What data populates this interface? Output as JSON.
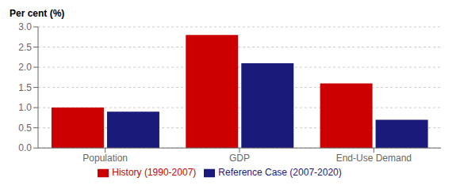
{
  "chart_data": {
    "type": "bar",
    "categories": [
      "Population",
      "GDP",
      "End-Use Demand"
    ],
    "series": [
      {
        "name": "History (1990-2007)",
        "color": "#cc0000",
        "values": [
          1.0,
          2.8,
          1.6
        ]
      },
      {
        "name": "Reference Case (2007-2020)",
        "color": "#1a1a7a",
        "values": [
          0.9,
          2.1,
          0.7
        ]
      }
    ],
    "ylabel": "Per cent (%)",
    "ylim": [
      0.0,
      3.0
    ],
    "yticks": [
      {
        "value": 0,
        "label": "0.0"
      },
      0.5,
      {
        "value": 1,
        "label": "1.0"
      },
      1.5,
      {
        "value": 2,
        "label": "2.0"
      },
      2.5,
      {
        "value": 3,
        "label": "3.0"
      }
    ],
    "grid": true,
    "legend": "bottom"
  }
}
